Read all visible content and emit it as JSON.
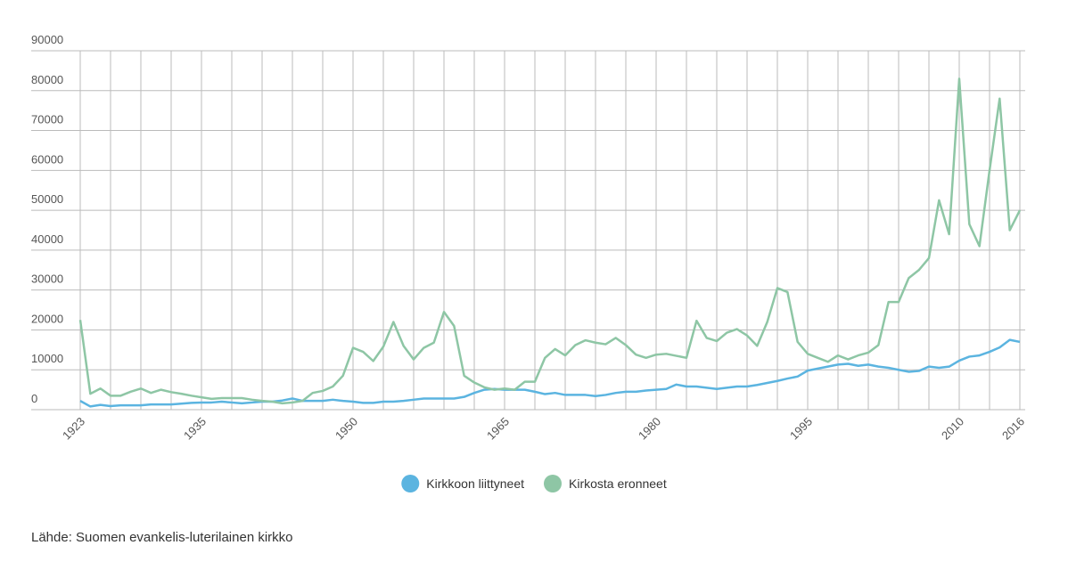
{
  "chart_data": {
    "type": "line",
    "x": [
      1923,
      1924,
      1925,
      1926,
      1927,
      1928,
      1929,
      1930,
      1931,
      1932,
      1933,
      1934,
      1935,
      1936,
      1937,
      1938,
      1939,
      1940,
      1941,
      1942,
      1943,
      1944,
      1945,
      1946,
      1947,
      1948,
      1949,
      1950,
      1951,
      1952,
      1953,
      1954,
      1955,
      1956,
      1957,
      1958,
      1959,
      1960,
      1961,
      1962,
      1963,
      1964,
      1965,
      1966,
      1967,
      1968,
      1969,
      1970,
      1971,
      1972,
      1973,
      1974,
      1975,
      1976,
      1977,
      1978,
      1979,
      1980,
      1981,
      1982,
      1983,
      1984,
      1985,
      1986,
      1987,
      1988,
      1989,
      1990,
      1991,
      1992,
      1993,
      1994,
      1995,
      1996,
      1997,
      1998,
      1999,
      2000,
      2001,
      2002,
      2003,
      2004,
      2005,
      2006,
      2007,
      2008,
      2009,
      2010,
      2011,
      2012,
      2013,
      2014,
      2015,
      2016
    ],
    "series": [
      {
        "name": "Kirkkoon liittyneet",
        "color": "#5bb4e0",
        "values": [
          2200,
          800,
          1200,
          900,
          1100,
          1100,
          1100,
          1300,
          1300,
          1300,
          1500,
          1700,
          1800,
          1800,
          2000,
          1800,
          1600,
          1800,
          2000,
          2000,
          2300,
          2800,
          2200,
          2200,
          2200,
          2500,
          2200,
          2000,
          1700,
          1700,
          2000,
          2000,
          2200,
          2500,
          2800,
          2800,
          2800,
          2800,
          3200,
          4200,
          5000,
          5200,
          5000,
          5000,
          5000,
          4500,
          3900,
          4200,
          3700,
          3700,
          3700,
          3400,
          3700,
          4200,
          4500,
          4500,
          4800,
          5000,
          5200,
          6300,
          5800,
          5800,
          5500,
          5200,
          5500,
          5800,
          5800,
          6200,
          6700,
          7200,
          7800,
          8300,
          9800,
          10300,
          10800,
          11300,
          11500,
          11000,
          11300,
          10800,
          10500,
          10000,
          9500,
          9700,
          10800,
          10500,
          10800,
          12300,
          13300,
          13600,
          14500,
          15600,
          17500,
          17000
        ]
      },
      {
        "name": "Kirkosta eronneet",
        "color": "#8ec6a5",
        "values": [
          22500,
          4000,
          5300,
          3500,
          3500,
          4500,
          5300,
          4200,
          5000,
          4400,
          4000,
          3500,
          3100,
          2700,
          2900,
          2900,
          2900,
          2500,
          2200,
          2000,
          1600,
          1800,
          2200,
          4200,
          4700,
          5800,
          8500,
          15500,
          14500,
          12200,
          15800,
          22000,
          16000,
          12600,
          15500,
          16800,
          24500,
          21000,
          8500,
          6800,
          5600,
          5000,
          5300,
          5000,
          7000,
          7000,
          13000,
          15200,
          13600,
          16200,
          17400,
          16800,
          16400,
          18000,
          16200,
          13800,
          13000,
          13800,
          14000,
          13500,
          13000,
          22300,
          18000,
          17200,
          19300,
          20200,
          18600,
          16000,
          22000,
          30500,
          29500,
          17000,
          14000,
          13000,
          12000,
          13600,
          12600,
          13600,
          14300,
          16200,
          27000,
          27000,
          33000,
          35000,
          38000,
          52500,
          44000,
          83000,
          46500,
          41000,
          60000,
          78000,
          45000,
          50000
        ]
      }
    ],
    "xlim": [
      1923,
      2016
    ],
    "xticks": [
      1923,
      {
        "value": 1926,
        "label": null
      },
      {
        "value": 1929,
        "label": null
      },
      {
        "value": 1932,
        "label": null
      },
      1935,
      {
        "value": 1938,
        "label": null
      },
      {
        "value": 1941,
        "label": null
      },
      {
        "value": 1944,
        "label": null
      },
      {
        "value": 1947,
        "label": null
      },
      1950,
      {
        "value": 1953,
        "label": null
      },
      {
        "value": 1956,
        "label": null
      },
      {
        "value": 1959,
        "label": null
      },
      {
        "value": 1962,
        "label": null
      },
      1965,
      {
        "value": 1968,
        "label": null
      },
      {
        "value": 1971,
        "label": null
      },
      {
        "value": 1974,
        "label": null
      },
      {
        "value": 1977,
        "label": null
      },
      1980,
      {
        "value": 1983,
        "label": null
      },
      {
        "value": 1986,
        "label": null
      },
      {
        "value": 1989,
        "label": null
      },
      {
        "value": 1992,
        "label": null
      },
      1995,
      {
        "value": 1998,
        "label": null
      },
      {
        "value": 2001,
        "label": null
      },
      {
        "value": 2004,
        "label": null
      },
      {
        "value": 2007,
        "label": null
      },
      2010,
      {
        "value": 2013,
        "label": null
      },
      2016
    ],
    "ylim": [
      0,
      90000
    ],
    "yticks": [
      0,
      10000,
      20000,
      30000,
      40000,
      50000,
      60000,
      70000,
      80000,
      90000
    ],
    "grid": true,
    "legend": "bottom",
    "source": "Lähde: Suomen evankelis-luterilainen kirkko"
  }
}
